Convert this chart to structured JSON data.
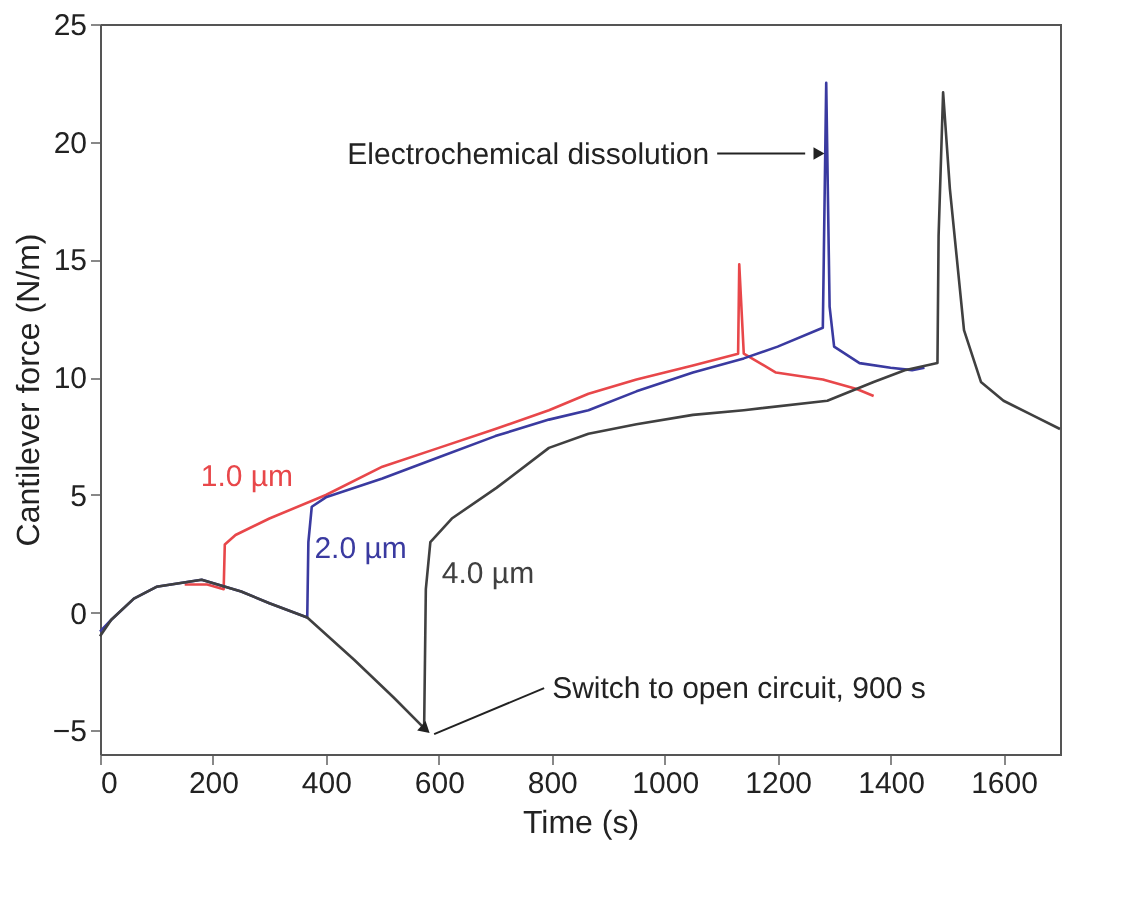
{
  "chart_data": {
    "type": "line",
    "xlabel": "Time (s)",
    "ylabel": "Cantilever force (N/m)",
    "xlim": [
      0,
      1700
    ],
    "ylim": [
      -6,
      25
    ],
    "xticks": [
      0,
      200,
      400,
      600,
      800,
      1000,
      1200,
      1400,
      1600
    ],
    "yticks": [
      -5,
      0,
      5,
      10,
      15,
      20,
      25
    ],
    "grid": false,
    "legend": false,
    "marker": "none",
    "line_style": "solid",
    "series": [
      {
        "name": "1.0 µm",
        "color": "#e8474a",
        "x": [
          150,
          190,
          219,
          221,
          240,
          300,
          400,
          500,
          600,
          700,
          795,
          865,
          950,
          1050,
          1130,
          1132,
          1140,
          1197,
          1280,
          1340,
          1370
        ],
        "values": [
          1.2,
          1.2,
          1.0,
          2.9,
          3.3,
          4.0,
          5.0,
          6.2,
          7.0,
          7.8,
          8.6,
          9.3,
          9.9,
          10.5,
          11.0,
          14.8,
          11.0,
          10.2,
          9.9,
          9.5,
          9.2
        ]
      },
      {
        "name": "2.0 µm",
        "color": "#3a3aa0",
        "x": [
          0,
          20,
          60,
          100,
          180,
          250,
          300,
          367,
          369,
          375,
          400,
          500,
          600,
          700,
          795,
          865,
          950,
          1050,
          1140,
          1200,
          1280,
          1286,
          1292,
          1300,
          1345,
          1400,
          1438,
          1460
        ],
        "values": [
          -0.8,
          -0.3,
          0.6,
          1.1,
          1.4,
          0.9,
          0.4,
          -0.2,
          3.0,
          4.5,
          4.9,
          5.7,
          6.6,
          7.5,
          8.2,
          8.6,
          9.4,
          10.2,
          10.8,
          11.3,
          12.1,
          22.5,
          13.0,
          11.3,
          10.6,
          10.4,
          10.3,
          10.4
        ]
      },
      {
        "name": "4.0 µm",
        "color": "#404040",
        "x": [
          0,
          20,
          60,
          100,
          180,
          250,
          300,
          367,
          450,
          520,
          574,
          577,
          585,
          623,
          702,
          795,
          865,
          950,
          1050,
          1140,
          1288,
          1370,
          1425,
          1483,
          1485,
          1493,
          1505,
          1530,
          1560,
          1600,
          1650,
          1700
        ],
        "values": [
          -1.0,
          -0.3,
          0.6,
          1.1,
          1.4,
          0.9,
          0.4,
          -0.2,
          -2.0,
          -3.6,
          -4.9,
          1.0,
          3.0,
          4.0,
          5.3,
          7.0,
          7.6,
          8.0,
          8.4,
          8.6,
          9.0,
          9.8,
          10.3,
          10.6,
          16.0,
          22.1,
          18.0,
          12.0,
          9.8,
          9.0,
          8.4,
          7.8
        ]
      }
    ],
    "annotations": [
      {
        "text": "Electrochemical dissolution",
        "x": 1270,
        "y": 19.5
      },
      {
        "text": "Switch to open circuit, 900 s",
        "x": 574,
        "y": -4.9
      }
    ]
  }
}
